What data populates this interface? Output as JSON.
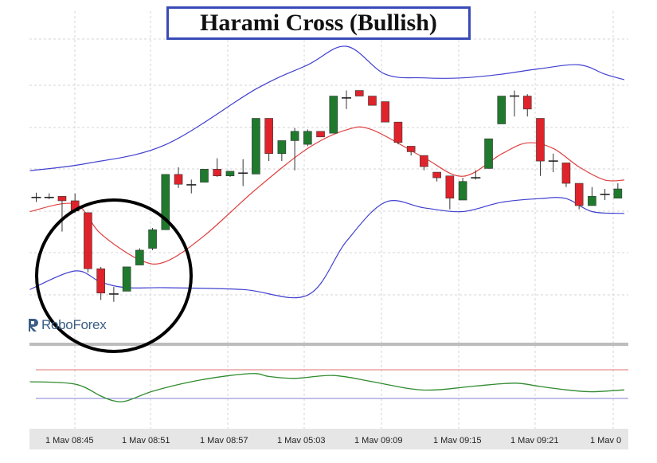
{
  "title": "Harami Cross (Bullish)",
  "watermark": "RoboForex",
  "colors": {
    "bullish_candle": "#1f7a2e",
    "bearish_candle": "#e0232b",
    "upper_band": "#4040d0",
    "lower_band": "#4040d0",
    "middle_band": "#e04040",
    "oscillator": "#2f8a2f",
    "title_border": "#3a4bb8",
    "highlight_circle": "#000000"
  },
  "icons": [
    "roboforex-logo-icon"
  ],
  "chart_data": {
    "type": "candlestick",
    "title": "Harami Cross (Bullish)",
    "x_tick_labels": [
      "1 Mav 08:45",
      "1 Mav 08:51",
      "1 Mav 08:57",
      "1 Mav 05:03",
      "1 Mav 09:09",
      "1 Mav 09:15",
      "1 Mav 09:21",
      "1 Mav 0"
    ],
    "ylim": [
      0,
      100
    ],
    "grid": true,
    "candles": [
      {
        "o": 48.6,
        "h": 51.2,
        "l": 46.2,
        "c": 48.6
      },
      {
        "o": 48.6,
        "h": 50.8,
        "l": 47.7,
        "c": 48.6
      },
      {
        "o": 49.2,
        "h": 49.2,
        "l": 30.2,
        "c": 46.8
      },
      {
        "o": 46.8,
        "h": 50.8,
        "l": 40.3,
        "c": 41.3
      },
      {
        "o": 40.4,
        "h": 40.4,
        "l": 8.2,
        "c": 10.2
      },
      {
        "o": 10.2,
        "h": 11.2,
        "l": -6.6,
        "c": -2.9
      },
      {
        "o": -3.4,
        "h": 0.4,
        "l": -7.6,
        "c": -3.4
      },
      {
        "o": -1.9,
        "h": 11.2,
        "l": -1.9,
        "c": 11.2
      },
      {
        "o": 12.2,
        "h": 21.2,
        "l": 12.2,
        "c": 20.2
      },
      {
        "o": 21.2,
        "h": 32.2,
        "l": 20.2,
        "c": 31.2
      },
      {
        "o": 31.2,
        "h": 61.0,
        "l": 31.2,
        "c": 61.0
      },
      {
        "o": 61.0,
        "h": 64.8,
        "l": 53.7,
        "c": 55.7
      },
      {
        "o": 55.4,
        "h": 58.2,
        "l": 50.8,
        "c": 55.4
      },
      {
        "o": 56.8,
        "h": 63.8,
        "l": 56.8,
        "c": 63.8
      },
      {
        "o": 63.8,
        "h": 69.7,
        "l": 59.7,
        "c": 60.2
      },
      {
        "o": 60.2,
        "h": 62.7,
        "l": 59.7,
        "c": 62.7
      },
      {
        "o": 61.7,
        "h": 69.2,
        "l": 54.7,
        "c": 61.7
      },
      {
        "o": 61.2,
        "h": 91.2,
        "l": 61.2,
        "c": 91.2
      },
      {
        "o": 91.2,
        "h": 91.2,
        "l": 68.2,
        "c": 72.2
      },
      {
        "o": 72.2,
        "h": 79.2,
        "l": 68.2,
        "c": 79.2
      },
      {
        "o": 79.2,
        "h": 86.0,
        "l": 63.2,
        "c": 84.2
      },
      {
        "o": 77.2,
        "h": 85.2,
        "l": 76.2,
        "c": 84.2
      },
      {
        "o": 84.2,
        "h": 84.2,
        "l": 81.2,
        "c": 81.2
      },
      {
        "o": 83.2,
        "h": 103.2,
        "l": 83.2,
        "c": 103.2
      },
      {
        "o": 102.2,
        "h": 106.2,
        "l": 96.2,
        "c": 102.2
      },
      {
        "o": 106.2,
        "h": 106.2,
        "l": 103.2,
        "c": 103.2
      },
      {
        "o": 103.2,
        "h": 103.2,
        "l": 98.2,
        "c": 98.2
      },
      {
        "o": 100.2,
        "h": 100.2,
        "l": 89.2,
        "c": 89.2
      },
      {
        "o": 89.2,
        "h": 89.2,
        "l": 77.2,
        "c": 78.2
      },
      {
        "o": 76.2,
        "h": 76.2,
        "l": 71.2,
        "c": 73.2
      },
      {
        "o": 71.2,
        "h": 71.2,
        "l": 63.2,
        "c": 65.2
      },
      {
        "o": 62.2,
        "h": 62.2,
        "l": 57.2,
        "c": 59.2
      },
      {
        "o": 60.2,
        "h": 60.2,
        "l": 42.2,
        "c": 48.2
      },
      {
        "o": 47.2,
        "h": 59.2,
        "l": 47.2,
        "c": 57.2
      },
      {
        "o": 59.2,
        "h": 63.2,
        "l": 58.2,
        "c": 59.2
      },
      {
        "o": 64.2,
        "h": 80.2,
        "l": 64.2,
        "c": 80.2
      },
      {
        "o": 88.2,
        "h": 103.2,
        "l": 88.2,
        "c": 103.2
      },
      {
        "o": 103.2,
        "h": 106.2,
        "l": 92.2,
        "c": 103.2
      },
      {
        "o": 103.2,
        "h": 104.2,
        "l": 92.2,
        "c": 96.2
      },
      {
        "o": 91.2,
        "h": 91.2,
        "l": 60.2,
        "c": 68.2
      },
      {
        "o": 68.2,
        "h": 72.2,
        "l": 62.2,
        "c": 68.2
      },
      {
        "o": 67.2,
        "h": 67.2,
        "l": 54.2,
        "c": 56.2
      },
      {
        "o": 56.2,
        "h": 56.2,
        "l": 42.2,
        "c": 44.2
      },
      {
        "o": 44.2,
        "h": 54.2,
        "l": 44.2,
        "c": 49.2
      },
      {
        "o": 50.2,
        "h": 53.2,
        "l": 47.2,
        "c": 50.2
      },
      {
        "o": 48.2,
        "h": 56.2,
        "l": 48.2,
        "c": 53.2
      }
    ],
    "bollinger_upper": [
      [
        0,
        63
      ],
      [
        4,
        67
      ],
      [
        10,
        77
      ],
      [
        17,
        107
      ],
      [
        21,
        120
      ],
      [
        24,
        130
      ],
      [
        27,
        115
      ],
      [
        30,
        113
      ],
      [
        33,
        113
      ],
      [
        36,
        115
      ],
      [
        39,
        118
      ],
      [
        42,
        120
      ],
      [
        44,
        115
      ],
      [
        45,
        112
      ]
    ],
    "bollinger_middle": [
      [
        0,
        41
      ],
      [
        3,
        45
      ],
      [
        5,
        29
      ],
      [
        8,
        15
      ],
      [
        10,
        14
      ],
      [
        13,
        28
      ],
      [
        17,
        53
      ],
      [
        21,
        75
      ],
      [
        24,
        85
      ],
      [
        26,
        85
      ],
      [
        30,
        70
      ],
      [
        33,
        60
      ],
      [
        36,
        72
      ],
      [
        38,
        78
      ],
      [
        40,
        75
      ],
      [
        42,
        65
      ],
      [
        44,
        58
      ],
      [
        45,
        58
      ]
    ],
    "bollinger_lower": [
      [
        0,
        -1
      ],
      [
        3,
        9
      ],
      [
        5,
        3
      ],
      [
        7,
        0
      ],
      [
        10,
        0
      ],
      [
        16,
        -1
      ],
      [
        21,
        -4
      ],
      [
        24,
        25
      ],
      [
        27,
        46
      ],
      [
        30,
        43
      ],
      [
        33,
        41
      ],
      [
        36,
        46
      ],
      [
        39,
        48
      ],
      [
        41,
        48
      ],
      [
        43,
        41
      ],
      [
        45,
        40
      ]
    ],
    "oscillator": {
      "ylim": [
        0,
        100
      ],
      "levels": [
        80,
        20
      ],
      "points": [
        [
          0,
          55
        ],
        [
          3,
          50
        ],
        [
          5,
          25
        ],
        [
          6,
          15
        ],
        [
          7,
          15
        ],
        [
          9,
          35
        ],
        [
          12,
          55
        ],
        [
          15,
          68
        ],
        [
          17,
          72
        ],
        [
          18,
          66
        ],
        [
          20,
          62
        ],
        [
          23,
          68
        ],
        [
          26,
          55
        ],
        [
          29,
          40
        ],
        [
          31,
          38
        ],
        [
          34,
          46
        ],
        [
          37,
          52
        ],
        [
          39,
          45
        ],
        [
          41,
          38
        ],
        [
          43,
          34
        ],
        [
          45,
          38
        ]
      ]
    }
  }
}
